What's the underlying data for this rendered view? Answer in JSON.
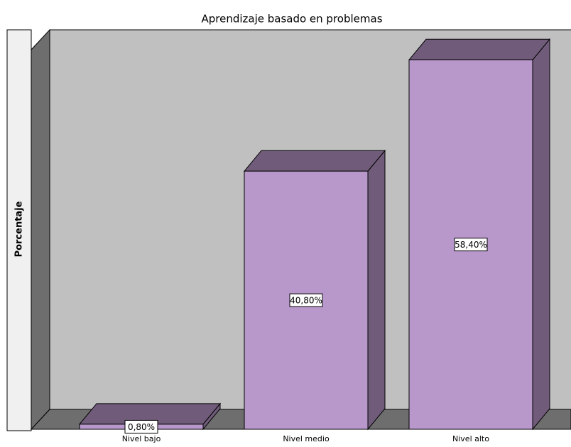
{
  "chart_data": {
    "type": "bar3d",
    "title": "Aprendizaje basado en problemas",
    "y_label": "Porcentaje",
    "categories": [
      "Nivel bajo",
      "Nivel medio",
      "Nivel alto"
    ],
    "values": [
      0.8,
      40.8,
      58.4
    ],
    "value_labels": [
      "0,80%",
      "40,80%",
      "58,40%"
    ],
    "color": "#b898cb",
    "side_color": "#705c7a",
    "ylim": [
      0,
      60
    ]
  }
}
